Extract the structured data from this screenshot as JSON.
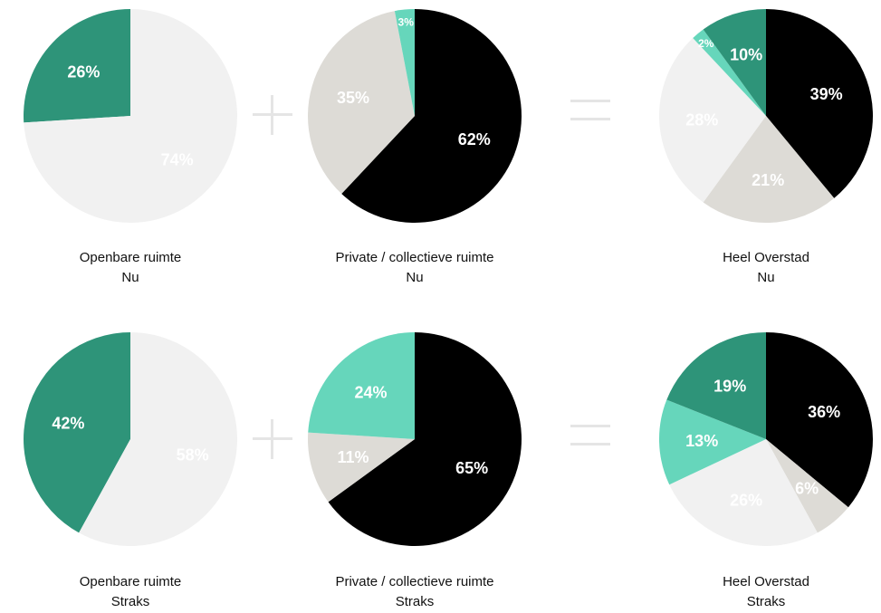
{
  "colors": {
    "black": "#000000",
    "light_gray": "#f1f1f1",
    "gray": "#dddbd6",
    "dark_green": "#2e9479",
    "mint": "#66d6bb",
    "operator": "#e5e5e5"
  },
  "operators": {
    "plus": "+",
    "equals": "="
  },
  "chart_data": [
    {
      "type": "pie",
      "caption_line1": "Openbare ruimte",
      "caption_line2": "Nu",
      "labels": [
        "26%",
        "74%"
      ],
      "values": [
        26,
        74
      ],
      "colors": [
        "#2e9479",
        "#f1f1f1"
      ],
      "label_colors": [
        "#ffffff",
        "#ffffff"
      ],
      "start": "top",
      "direction": "counterclockwise"
    },
    {
      "type": "pie",
      "caption_line1": "Private / collectieve ruimte",
      "caption_line2": "Nu",
      "labels": [
        "62%",
        "35%",
        "3%"
      ],
      "values": [
        62,
        35,
        3
      ],
      "colors": [
        "#000000",
        "#dddbd6",
        "#66d6bb"
      ],
      "label_colors": [
        "#ffffff",
        "#ffffff",
        "#ffffff"
      ],
      "start": "top",
      "direction": "clockwise"
    },
    {
      "type": "pie",
      "caption_line1": "Heel Overstad",
      "caption_line2": "Nu",
      "labels": [
        "39%",
        "21%",
        "28%",
        "2%",
        "10%"
      ],
      "values": [
        39,
        21,
        28,
        2,
        10
      ],
      "colors": [
        "#000000",
        "#dddbd6",
        "#f1f1f1",
        "#66d6bb",
        "#2e9479"
      ],
      "label_colors": [
        "#ffffff",
        "#ffffff",
        "#ffffff",
        "#ffffff",
        "#ffffff"
      ],
      "start": "top",
      "direction": "clockwise"
    },
    {
      "type": "pie",
      "caption_line1": "Openbare ruimte",
      "caption_line2": "Straks",
      "labels": [
        "42%",
        "58%"
      ],
      "values": [
        42,
        58
      ],
      "colors": [
        "#2e9479",
        "#f1f1f1"
      ],
      "label_colors": [
        "#ffffff",
        "#ffffff"
      ],
      "start": "top",
      "direction": "counterclockwise"
    },
    {
      "type": "pie",
      "caption_line1": "Private / collectieve ruimte",
      "caption_line2": "Straks",
      "labels": [
        "65%",
        "11%",
        "24%"
      ],
      "values": [
        65,
        11,
        24
      ],
      "colors": [
        "#000000",
        "#dddbd6",
        "#66d6bb"
      ],
      "label_colors": [
        "#ffffff",
        "#ffffff",
        "#ffffff"
      ],
      "start": "top",
      "direction": "clockwise"
    },
    {
      "type": "pie",
      "caption_line1": "Heel Overstad",
      "caption_line2": "Straks",
      "labels": [
        "36%",
        "6%",
        "26%",
        "13%",
        "19%"
      ],
      "values": [
        36,
        6,
        26,
        13,
        19
      ],
      "colors": [
        "#000000",
        "#dddbd6",
        "#f1f1f1",
        "#66d6bb",
        "#2e9479"
      ],
      "label_colors": [
        "#ffffff",
        "#ffffff",
        "#ffffff",
        "#ffffff",
        "#ffffff"
      ],
      "start": "top",
      "direction": "clockwise"
    }
  ]
}
